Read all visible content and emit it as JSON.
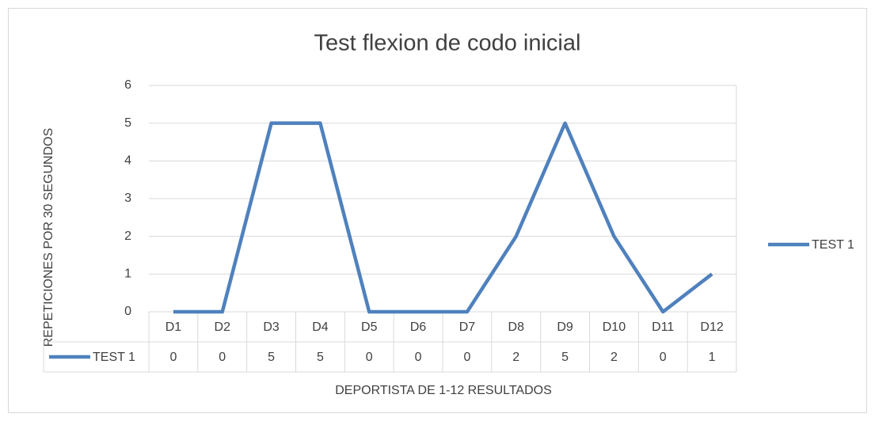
{
  "chart_data": {
    "type": "line",
    "title": "Test flexion de codo inicial",
    "x_label": "DEPORTISTA DE 1-12 RESULTADOS",
    "y_label": "REPETICIONES  POR 30 SEGUNDOS",
    "categories": [
      "D1",
      "D2",
      "D3",
      "D4",
      "D5",
      "D6",
      "D7",
      "D8",
      "D9",
      "D10",
      "D11",
      "D12"
    ],
    "series": [
      {
        "name": "TEST 1",
        "color": "#4f81bd",
        "values": [
          0,
          0,
          5,
          5,
          0,
          0,
          0,
          2,
          5,
          2,
          0,
          1
        ]
      }
    ],
    "ylim": [
      0,
      6
    ],
    "yticks": [
      0,
      1,
      2,
      3,
      4,
      5,
      6
    ],
    "grid": true,
    "legend": "right",
    "data_table": true
  }
}
